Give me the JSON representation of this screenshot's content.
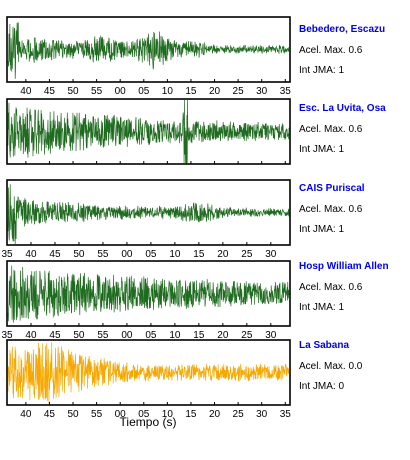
{
  "chart_data": [
    {
      "type": "line",
      "station": "Bebedero, Escazu",
      "accel_label": "Acel. Max. 0.6",
      "jma_label": "Int JMA: 1",
      "color": "#1f6b1f",
      "name_color": "#0000ee",
      "x_ticks": [
        "40",
        "45",
        "50",
        "55",
        "00",
        "05",
        "10",
        "15",
        "20",
        "25",
        "30",
        "35"
      ],
      "x_range_sec": [
        36,
        96
      ],
      "tick_start_sec": 40
    },
    {
      "type": "line",
      "station": "Esc. La Uvita, Osa",
      "accel_label": "Acel. Max. 0.6",
      "jma_label": "Int JMA: 1",
      "color": "#1f6b1f",
      "name_color": "#0000ee",
      "x_ticks": [],
      "x_range_sec": [
        36,
        96
      ],
      "tick_start_sec": 40
    },
    {
      "type": "line",
      "station": "CAIS Puriscal",
      "accel_label": "Acel. Max. 0.6",
      "jma_label": "Int JMA: 1",
      "color": "#1f6b1f",
      "name_color": "#0000ee",
      "x_ticks": [
        "35",
        "40",
        "45",
        "50",
        "55",
        "00",
        "05",
        "10",
        "15",
        "20",
        "25",
        "30"
      ],
      "x_range_sec": [
        35,
        94
      ],
      "tick_start_sec": 35
    },
    {
      "type": "line",
      "station": "Hosp William Allen",
      "accel_label": "Acel. Max. 0.6",
      "jma_label": "Int JMA: 1",
      "color": "#1f6b1f",
      "name_color": "#0000ee",
      "x_ticks": [
        "35",
        "40",
        "45",
        "50",
        "55",
        "00",
        "05",
        "10",
        "15",
        "20",
        "25",
        "30"
      ],
      "x_range_sec": [
        35,
        94
      ],
      "tick_start_sec": 35
    },
    {
      "type": "line",
      "station": "La Sabana",
      "accel_label": "Acel. Max. 0.0",
      "jma_label": "Int JMA: 0",
      "color": "#f5a800",
      "name_color": "#0000ee",
      "x_ticks": [
        "40",
        "45",
        "50",
        "55",
        "00",
        "05",
        "10",
        "15",
        "20",
        "25",
        "30",
        "35"
      ],
      "x_range_sec": [
        36,
        96
      ],
      "tick_start_sec": 40
    }
  ],
  "xlabel": "Tiempo (s)"
}
